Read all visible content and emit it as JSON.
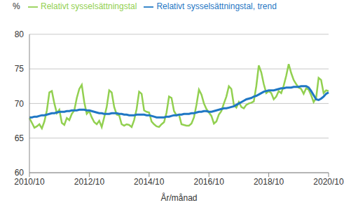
{
  "chart_data": {
    "type": "line",
    "y_label": "%",
    "x_label": "År/månad",
    "categories": [
      "2010/10",
      null,
      null,
      null,
      null,
      null,
      null,
      null,
      null,
      null,
      null,
      null,
      null,
      null,
      null,
      null,
      null,
      null,
      null,
      null,
      null,
      null,
      null,
      null,
      "2012/10",
      null,
      null,
      null,
      null,
      null,
      null,
      null,
      null,
      null,
      null,
      null,
      null,
      null,
      null,
      null,
      null,
      null,
      null,
      null,
      null,
      null,
      null,
      null,
      "2014/10",
      null,
      null,
      null,
      null,
      null,
      null,
      null,
      null,
      null,
      null,
      null,
      null,
      null,
      null,
      null,
      null,
      null,
      null,
      null,
      null,
      null,
      null,
      null,
      "2016/10",
      null,
      null,
      null,
      null,
      null,
      null,
      null,
      null,
      null,
      null,
      null,
      null,
      null,
      null,
      null,
      null,
      null,
      null,
      null,
      null,
      null,
      null,
      null,
      "2018/10",
      null,
      null,
      null,
      null,
      null,
      null,
      null,
      null,
      null,
      null,
      null,
      null,
      null,
      null,
      null,
      null,
      null,
      null,
      null,
      null,
      null,
      null,
      null,
      "2020/10"
    ],
    "series": [
      {
        "name": "Relativt sysselsättningstal",
        "color": "#92d050",
        "values": [
          67.9,
          67.2,
          66.5,
          66.7,
          67.0,
          66.4,
          67.4,
          69.0,
          71.6,
          71.8,
          70.0,
          68.6,
          69.1,
          67.2,
          66.9,
          67.9,
          67.6,
          68.5,
          69.0,
          70.8,
          72.1,
          72.7,
          70.2,
          68.5,
          68.9,
          68.0,
          67.3,
          67.0,
          67.5,
          66.6,
          68.0,
          69.5,
          71.9,
          71.6,
          69.5,
          68.4,
          68.3,
          67.0,
          66.8,
          67.0,
          66.9,
          66.6,
          67.6,
          69.2,
          71.7,
          71.4,
          69.0,
          68.8,
          68.7,
          67.4,
          67.0,
          66.7,
          66.6,
          67.0,
          67.3,
          68.7,
          71.0,
          70.8,
          68.9,
          68.3,
          68.4,
          67.0,
          66.9,
          66.8,
          66.8,
          67.1,
          68.0,
          69.8,
          72.0,
          71.3,
          70.0,
          69.2,
          68.7,
          68.2,
          67.1,
          67.4,
          68.4,
          68.9,
          70.0,
          71.0,
          72.5,
          72.1,
          69.8,
          69.4,
          70.2,
          69.5,
          69.3,
          69.8,
          70.0,
          70.1,
          70.3,
          72.5,
          75.5,
          74.5,
          72.8,
          71.5,
          71.8,
          71.5,
          70.6,
          71.0,
          71.8,
          71.5,
          72.6,
          74.0,
          75.7,
          74.4,
          73.4,
          72.8,
          72.3,
          72.1,
          71.4,
          72.2,
          72.0,
          71.2,
          70.2,
          70.8,
          73.7,
          73.4,
          71.5,
          71.9,
          71.8
        ]
      },
      {
        "name": "Relativt sysselsättningstal, trend",
        "color": "#1f77c4",
        "values": [
          68.0,
          68.0,
          68.1,
          68.1,
          68.2,
          68.3,
          68.3,
          68.4,
          68.5,
          68.6,
          68.6,
          68.7,
          68.8,
          68.8,
          68.8,
          68.9,
          68.9,
          69.0,
          69.0,
          69.0,
          69.1,
          69.1,
          69.1,
          69.0,
          69.0,
          68.9,
          68.8,
          68.7,
          68.6,
          68.6,
          68.5,
          68.5,
          68.5,
          68.6,
          68.6,
          68.6,
          68.5,
          68.5,
          68.4,
          68.4,
          68.3,
          68.3,
          68.3,
          68.4,
          68.4,
          68.4,
          68.4,
          68.3,
          68.3,
          68.2,
          68.1,
          68.0,
          68.0,
          68.0,
          68.0,
          68.1,
          68.1,
          68.2,
          68.3,
          68.3,
          68.4,
          68.4,
          68.5,
          68.5,
          68.5,
          68.6,
          68.6,
          68.7,
          68.8,
          68.8,
          68.9,
          68.9,
          68.8,
          68.8,
          68.9,
          69.0,
          69.1,
          69.2,
          69.3,
          69.3,
          69.4,
          69.5,
          69.6,
          69.8,
          70.0,
          70.2,
          70.4,
          70.6,
          70.7,
          70.8,
          71.0,
          71.1,
          71.3,
          71.5,
          71.7,
          71.8,
          71.9,
          71.9,
          71.9,
          72.0,
          72.1,
          72.2,
          72.2,
          72.3,
          72.3,
          72.3,
          72.4,
          72.4,
          72.4,
          72.5,
          72.5,
          72.5,
          72.3,
          71.8,
          71.2,
          70.6,
          70.5,
          70.7,
          71.0,
          71.4,
          71.6
        ]
      }
    ],
    "ylim": [
      60,
      80
    ],
    "yticks": [
      60,
      65,
      70,
      75,
      80
    ],
    "grid": true,
    "legend": "top-left"
  }
}
